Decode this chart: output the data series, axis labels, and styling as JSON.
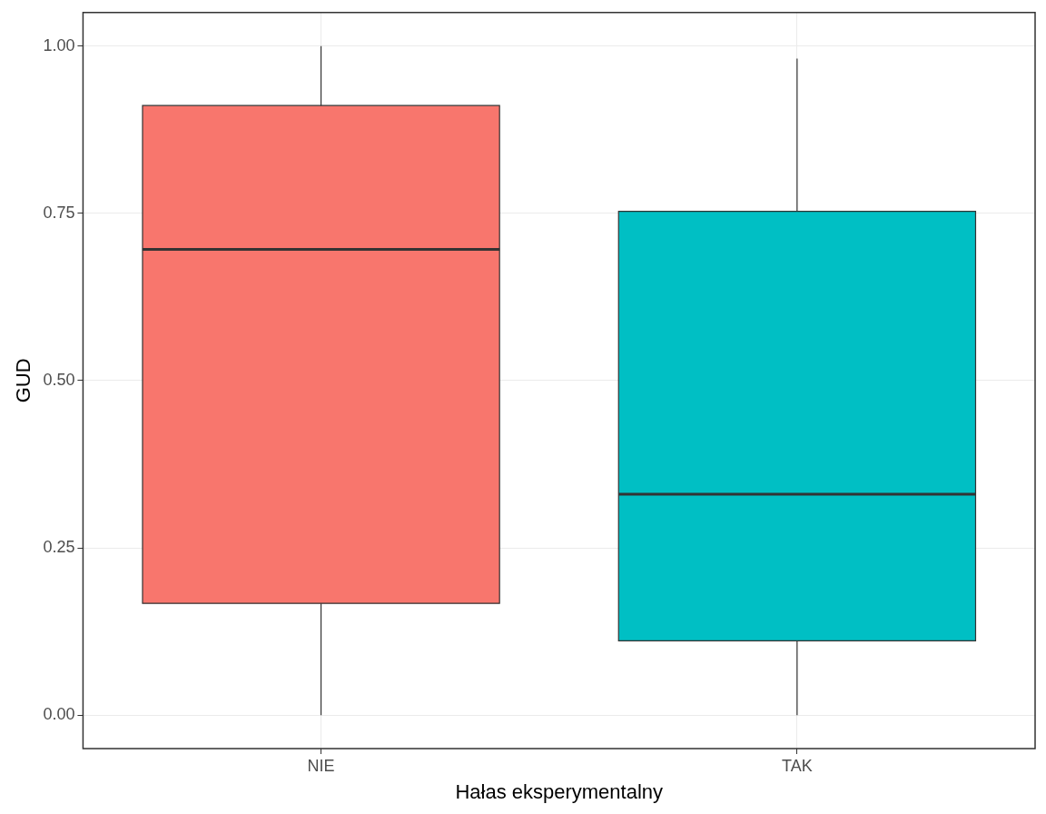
{
  "chart_data": {
    "type": "box",
    "xlabel": "Hałas eksperymentalny",
    "ylabel": "GUD",
    "categories": [
      "NIE",
      "TAK"
    ],
    "colors": [
      "#f8766d",
      "#00bfc4"
    ],
    "boxes": [
      {
        "low": 0,
        "q1": 0.167,
        "median": 0.696,
        "q3": 0.911,
        "high": 1.0
      },
      {
        "low": 0,
        "q1": 0.111,
        "median": 0.33,
        "q3": 0.753,
        "high": 0.981
      }
    ],
    "ylim": [
      -0.05,
      1.05
    ],
    "yticks": [
      {
        "value": 0,
        "label": "0.00"
      },
      {
        "value": 0.25,
        "label": "0.25"
      },
      {
        "value": 0.5,
        "label": "0.50"
      },
      {
        "value": 0.75,
        "label": "0.75"
      },
      {
        "value": 1,
        "label": "1.00"
      }
    ],
    "grid": true,
    "legend": false
  }
}
